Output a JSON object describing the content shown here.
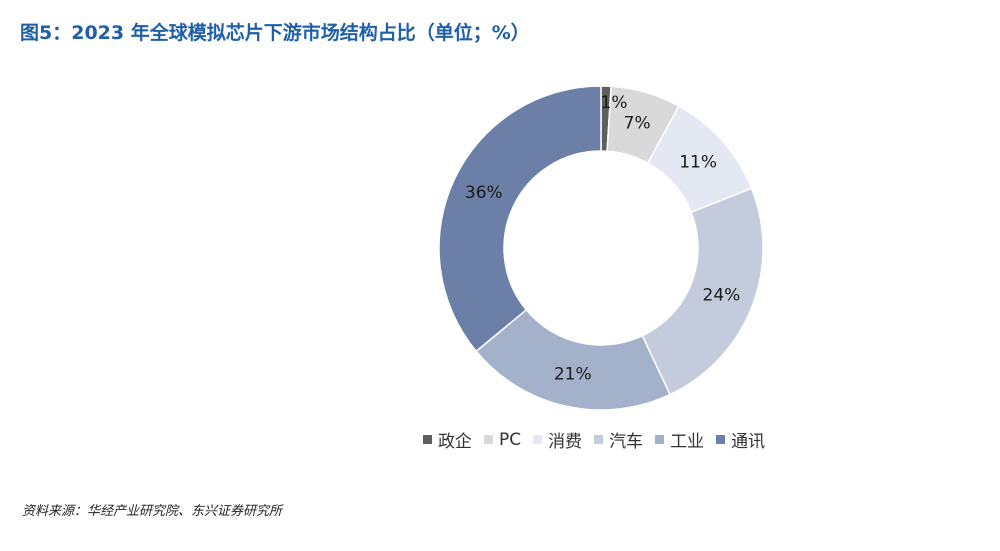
{
  "title": "图5：2023 年全球模拟芯片下游市场结构占比（单位；%）",
  "source": "资料来源：华经产业研究院、东兴证券研究所",
  "colors": {
    "title": "#1f5fa8",
    "segments": [
      "#5e5e5e",
      "#d9d9d9",
      "#e3e8f2",
      "#c4cbdd",
      "#a3b1cb",
      "#6c7fa6"
    ]
  },
  "chart_data": {
    "type": "pie",
    "donut": true,
    "categories": [
      "政企",
      "PC",
      "消费",
      "汽车",
      "工业",
      "通讯"
    ],
    "values": [
      1,
      7,
      11,
      24,
      21,
      36
    ],
    "labels": [
      "1%",
      "7%",
      "11%",
      "24%",
      "21%",
      "36%"
    ],
    "legend_position": "bottom"
  }
}
